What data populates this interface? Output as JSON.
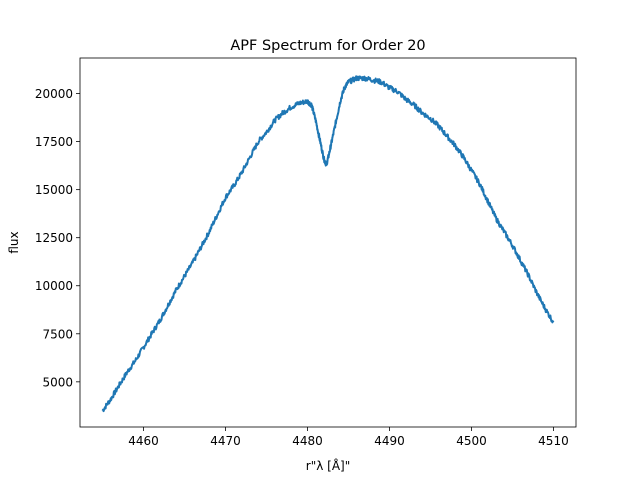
{
  "chart_data": {
    "type": "line",
    "title": "APF Spectrum for Order 20",
    "xlabel": "r\"λ [Å]\"",
    "ylabel": "flux",
    "xlim": [
      4452.25,
      4512.75
    ],
    "ylim": [
      2650,
      21850
    ],
    "xticks": [
      4460,
      4470,
      4480,
      4490,
      4500,
      4510
    ],
    "yticks": [
      5000,
      7500,
      10000,
      12500,
      15000,
      17500,
      20000
    ],
    "grid": false,
    "legend": "none",
    "series": [
      {
        "color": "#1f77b4",
        "x": [
          4455.0,
          4456.0,
          4457.0,
          4458.0,
          4459.0,
          4460.0,
          4461.0,
          4462.0,
          4463.0,
          4464.0,
          4465.0,
          4466.0,
          4467.0,
          4468.0,
          4469.0,
          4470.0,
          4471.0,
          4472.0,
          4473.0,
          4474.0,
          4475.0,
          4476.0,
          4477.0,
          4478.0,
          4479.0,
          4480.0,
          4480.5,
          4481.0,
          4481.5,
          4482.0,
          4482.3,
          4482.6,
          4483.0,
          4483.5,
          4484.0,
          4484.5,
          4485.0,
          4486.0,
          4487.0,
          4488.0,
          4489.0,
          4490.0,
          4491.0,
          4492.0,
          4493.0,
          4494.0,
          4495.0,
          4496.0,
          4497.0,
          4498.0,
          4499.0,
          4500.0,
          4501.0,
          4502.0,
          4503.0,
          4504.0,
          4505.0,
          4506.0,
          4507.0,
          4508.0,
          4509.0,
          4510.0
        ],
        "y": [
          3500,
          4100,
          4800,
          5500,
          6100,
          6800,
          7500,
          8200,
          9000,
          9800,
          10500,
          11200,
          12000,
          12800,
          13700,
          14600,
          15200,
          15900,
          16700,
          17500,
          18000,
          18600,
          19000,
          19300,
          19500,
          19600,
          19400,
          18600,
          17600,
          16600,
          16300,
          16800,
          17600,
          18600,
          19600,
          20300,
          20600,
          20800,
          20800,
          20700,
          20600,
          20300,
          20100,
          19700,
          19400,
          19000,
          18700,
          18300,
          17800,
          17300,
          16700,
          16000,
          15300,
          14400,
          13500,
          12800,
          12100,
          11300,
          10500,
          9600,
          8800,
          8100
        ]
      }
    ]
  }
}
